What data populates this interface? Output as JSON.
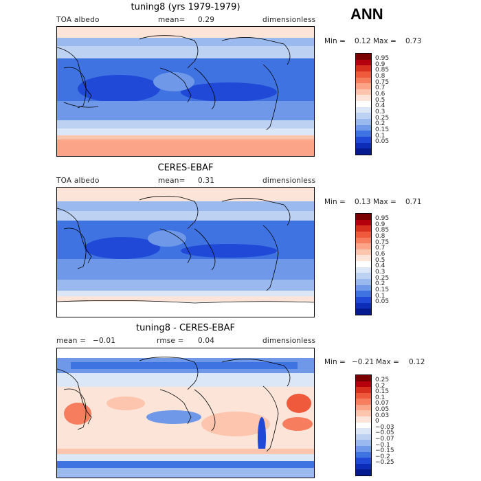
{
  "season": "ANN",
  "panels": [
    {
      "title": "tuning8 (yrs 1979-1979)",
      "left_label": "TOA albedo",
      "center_label": "mean=",
      "center_value": "0.29",
      "units": "dimensionless",
      "min_label": "Min =",
      "min_value": "0.12",
      "max_label": "Max =",
      "max_value": "0.73",
      "colorbar_ticks": [
        "0.95",
        "0.9",
        "0.85",
        "0.8",
        "0.75",
        "0.7",
        "0.6",
        "0.5",
        "0.4",
        "0.3",
        "0.25",
        "0.2",
        "0.15",
        "0.1",
        "0.05"
      ],
      "colorbar_colors": [
        "#7a0000",
        "#b3000c",
        "#d7301f",
        "#ef5a3c",
        "#f67e5e",
        "#fca487",
        "#fdc5ae",
        "#fde4d8",
        "#ffffff",
        "#dbe6f6",
        "#bdd2f3",
        "#9ab9ee",
        "#6f99e8",
        "#3f73e2",
        "#1f49d6",
        "#0d2cb8",
        "#061a8f"
      ]
    },
    {
      "title": "CERES-EBAF",
      "left_label": "TOA albedo",
      "center_label": "mean=",
      "center_value": "0.31",
      "units": "dimensionless",
      "min_label": "Min =",
      "min_value": "0.13",
      "max_label": "Max =",
      "max_value": "0.71",
      "colorbar_ticks": [
        "0.95",
        "0.9",
        "0.85",
        "0.8",
        "0.75",
        "0.7",
        "0.6",
        "0.5",
        "0.4",
        "0.3",
        "0.25",
        "0.2",
        "0.15",
        "0.1",
        "0.05"
      ],
      "colorbar_colors": [
        "#7a0000",
        "#b3000c",
        "#d7301f",
        "#ef5a3c",
        "#f67e5e",
        "#fca487",
        "#fdc5ae",
        "#fde4d8",
        "#ffffff",
        "#dbe6f6",
        "#bdd2f3",
        "#9ab9ee",
        "#6f99e8",
        "#3f73e2",
        "#1f49d6",
        "#0d2cb8",
        "#061a8f"
      ]
    },
    {
      "title": "tuning8 - CERES-EBAF",
      "left_label": "mean =",
      "left_value": "−0.01",
      "center_label": "rmse =",
      "center_value": "0.04",
      "units": "dimensionless",
      "min_label": "Min =",
      "min_value": "−0.21",
      "max_label": "Max =",
      "max_value": "0.12",
      "colorbar_ticks": [
        "0.25",
        "0.2",
        "0.15",
        "0.1",
        "0.07",
        "0.05",
        "0.03",
        "0",
        "−0.03",
        "−0.05",
        "−0.07",
        "−0.1",
        "−0.15",
        "−0.2",
        "−0.25"
      ],
      "colorbar_colors": [
        "#7a0000",
        "#b3000c",
        "#d7301f",
        "#ef5a3c",
        "#f67e5e",
        "#fca487",
        "#fdc5ae",
        "#fde4d8",
        "#ffffff",
        "#dbe6f6",
        "#bdd2f3",
        "#9ab9ee",
        "#6f99e8",
        "#3f73e2",
        "#1f49d6",
        "#0d2cb8",
        "#061a8f"
      ]
    }
  ]
}
